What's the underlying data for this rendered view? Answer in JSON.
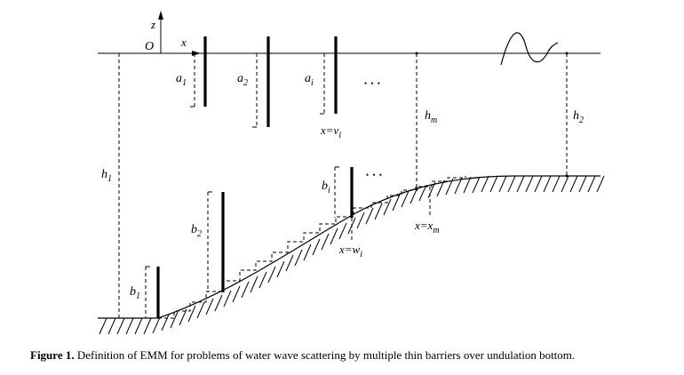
{
  "figure": {
    "axes": {
      "z": "z",
      "origin": "O",
      "x": "x"
    },
    "labels": {
      "a1": "a",
      "a1_sub": "1",
      "a2": "a",
      "a2_sub": "2",
      "ai": "a",
      "ai_sub": "i",
      "dots_top": "• • •",
      "dots_mid": "• • •",
      "x_eq_vi": "x=v",
      "x_eq_vi_sub": "i",
      "hm": "h",
      "hm_sub": "m",
      "h2": "h",
      "h2_sub": "2",
      "h1": "h",
      "h1_sub": "1",
      "bi": "b",
      "bi_sub": "i",
      "b2": "b",
      "b2_sub": "2",
      "b1": "b",
      "b1_sub": "1",
      "x_eq_wi": "x=w",
      "x_eq_wi_sub": "i",
      "x_eq_xm": "x=x",
      "x_eq_xm_sub": "m"
    }
  },
  "caption": {
    "label": "Figure 1.",
    "text": " Definition of EMM for problems of water wave scattering by multiple thin barriers over undulation bottom."
  }
}
